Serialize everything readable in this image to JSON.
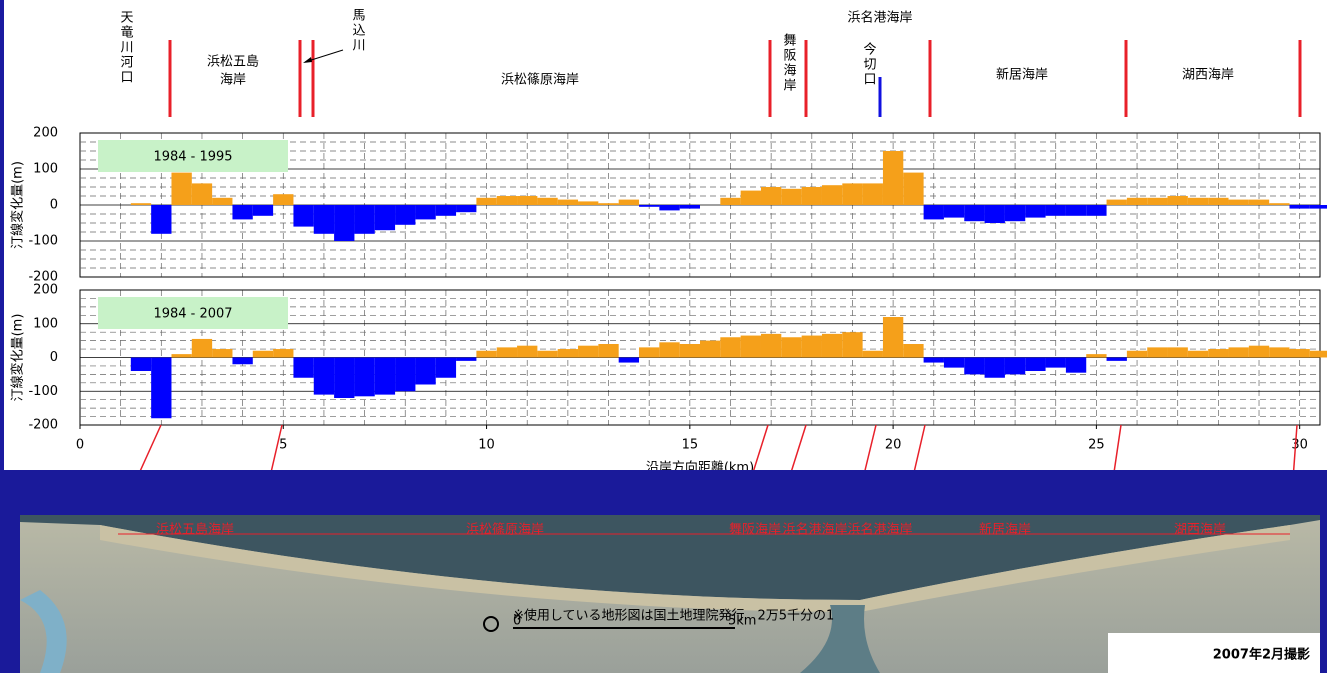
{
  "header": {
    "labels": [
      "天竜川河口",
      "浜松五島",
      "海岸",
      "馬込川",
      "浜松篠原海岸",
      "舞阪海岸",
      "浜名港海岸",
      "今切口",
      "新居海岸",
      "湖西海岸"
    ]
  },
  "chart_data": [
    {
      "type": "bar",
      "y_label": "汀線変化量(m)",
      "x": [
        1.5,
        2,
        2.5,
        3,
        3.5,
        4,
        4.5,
        5,
        5.5,
        6,
        6.5,
        7,
        7.5,
        8,
        8.5,
        9,
        9.5,
        10,
        10.5,
        11,
        11.5,
        12,
        12.5,
        13,
        13.5,
        14,
        14.5,
        15,
        15.5,
        16,
        16.5,
        17,
        17.5,
        18,
        18.5,
        19,
        19.5,
        20,
        20.5,
        21,
        21.5,
        22,
        22.5,
        23,
        23.5,
        24,
        24.5,
        25,
        25.5,
        26,
        26.5,
        27,
        27.5,
        28,
        28.5,
        29,
        29.5,
        30,
        30.5
      ],
      "series": [
        {
          "name": "1984 - 1995",
          "values": [
            5,
            -80,
            90,
            60,
            20,
            -40,
            -30,
            30,
            -60,
            -80,
            -100,
            -80,
            -70,
            -55,
            -40,
            -30,
            -20,
            20,
            25,
            25,
            20,
            15,
            10,
            5,
            15,
            -5,
            -15,
            -10,
            0,
            20,
            40,
            50,
            45,
            50,
            55,
            60,
            60,
            150,
            90,
            -40,
            -35,
            -45,
            -50,
            -45,
            -35,
            -30,
            -30,
            -30,
            15,
            20,
            20,
            25,
            20,
            20,
            15,
            15,
            5,
            -10,
            -10
          ]
        }
      ],
      "positive_color": "#f5a01a",
      "negative_color": "#0000ff",
      "xlim": [
        0,
        30.5
      ],
      "ylim": [
        -200,
        200
      ],
      "yticks": [
        -200,
        -100,
        0,
        100,
        200
      ],
      "grid": true
    },
    {
      "type": "bar",
      "y_label": "汀線変化量(m)",
      "x_label": "沿岸方向距離(km)",
      "x": [
        1.5,
        2,
        2.5,
        3,
        3.5,
        4,
        4.5,
        5,
        5.5,
        6,
        6.5,
        7,
        7.5,
        8,
        8.5,
        9,
        9.5,
        10,
        10.5,
        11,
        11.5,
        12,
        12.5,
        13,
        13.5,
        14,
        14.5,
        15,
        15.5,
        16,
        16.5,
        17,
        17.5,
        18,
        18.5,
        19,
        19.5,
        20,
        20.5,
        21,
        21.5,
        22,
        22.5,
        23,
        23.5,
        24,
        24.5,
        25,
        25.5,
        26,
        26.5,
        27,
        27.5,
        28,
        28.5,
        29,
        29.5,
        30,
        30.5
      ],
      "series": [
        {
          "name": "1984 - 2007",
          "values": [
            -40,
            -180,
            10,
            55,
            25,
            -20,
            20,
            25,
            -60,
            -110,
            -120,
            -115,
            -110,
            -100,
            -80,
            -60,
            -10,
            20,
            30,
            35,
            20,
            25,
            35,
            40,
            -15,
            30,
            45,
            40,
            50,
            60,
            65,
            70,
            60,
            65,
            70,
            75,
            20,
            120,
            40,
            -15,
            -30,
            -50,
            -60,
            -50,
            -40,
            -30,
            -45,
            10,
            -10,
            20,
            30,
            30,
            20,
            25,
            30,
            35,
            30,
            25,
            20
          ]
        }
      ],
      "positive_color": "#f5a01a",
      "negative_color": "#0000ff",
      "xlim": [
        0,
        30.5
      ],
      "ylim": [
        -200,
        200
      ],
      "xticks": [
        0,
        5,
        10,
        15,
        20,
        25,
        30
      ],
      "yticks": [
        -200,
        -100,
        0,
        100,
        200
      ],
      "grid": true
    }
  ],
  "photo": {
    "segment_labels": [
      "浜松五島海岸",
      "浜松篠原海岸",
      "舞阪海岸",
      "浜名港海岸",
      "浜名港海岸",
      "新居海岸",
      "湖西海岸"
    ],
    "note": "※使用している地形図は国土地理院発行　2万5千分の1",
    "scale_labels": [
      "0",
      "5km"
    ],
    "caption": "2007年2月撮影"
  }
}
